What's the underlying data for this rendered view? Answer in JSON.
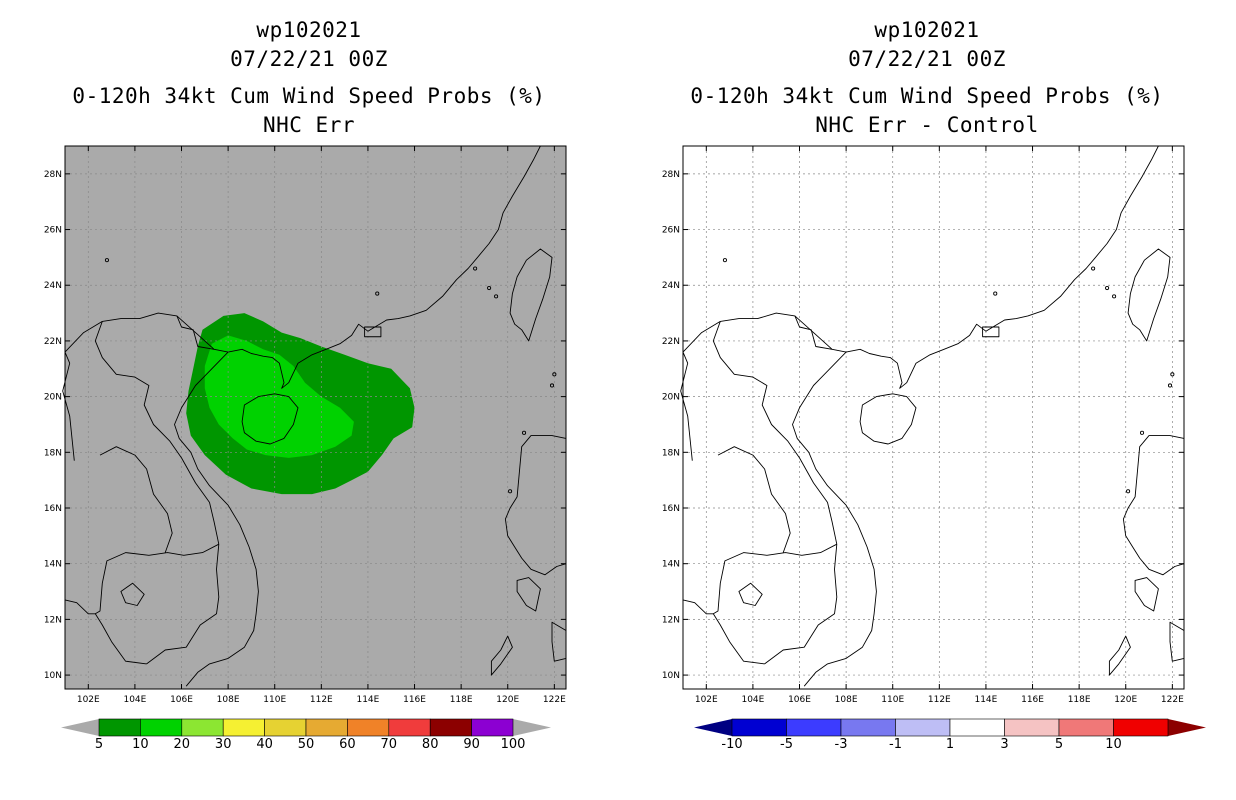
{
  "panels": {
    "left": {
      "storm_id": "wp102021",
      "datetime": "07/22/21 00Z",
      "product": "0-120h 34kt Cum Wind Speed Probs (%)",
      "subtitle": "NHC Err"
    },
    "right": {
      "storm_id": "wp102021",
      "datetime": "07/22/21 00Z",
      "product": "0-120h 34kt Cum Wind Speed Probs (%)",
      "subtitle": "NHC Err - Control"
    }
  },
  "axes": {
    "lon_ticks": [
      "102E",
      "104E",
      "106E",
      "108E",
      "110E",
      "112E",
      "114E",
      "116E",
      "118E",
      "120E",
      "122E"
    ],
    "lat_ticks": [
      "10N",
      "12N",
      "14N",
      "16N",
      "18N",
      "20N",
      "22N",
      "24N",
      "26N",
      "28N"
    ]
  },
  "left_colorbar": {
    "colors": [
      "#009600",
      "#00d200",
      "#8ce632",
      "#f5f032",
      "#e6d232",
      "#e6aa32",
      "#f08228",
      "#f03c3c",
      "#8c0000",
      "#8c00d2"
    ],
    "labels": [
      "5",
      "10",
      "20",
      "30",
      "40",
      "50",
      "60",
      "70",
      "80",
      "90",
      "100"
    ],
    "end_color": "#aaaaaa"
  },
  "right_colorbar": {
    "colors": [
      "#0000d2",
      "#3c3cff",
      "#7878f0",
      "#bebef5",
      "#ffffff",
      "#f5c3c3",
      "#f07878",
      "#f00000"
    ],
    "labels": [
      "-10",
      "-5",
      "-3",
      "-1",
      "1",
      "3",
      "5",
      "10"
    ],
    "low_end_color": "#000082",
    "high_end_color": "#8c0000"
  },
  "colors": {
    "map_background_left": "#aaaaaa",
    "map_background_right": "#ffffff",
    "prob_5_10": "#009600",
    "prob_10_20": "#00d200"
  }
}
